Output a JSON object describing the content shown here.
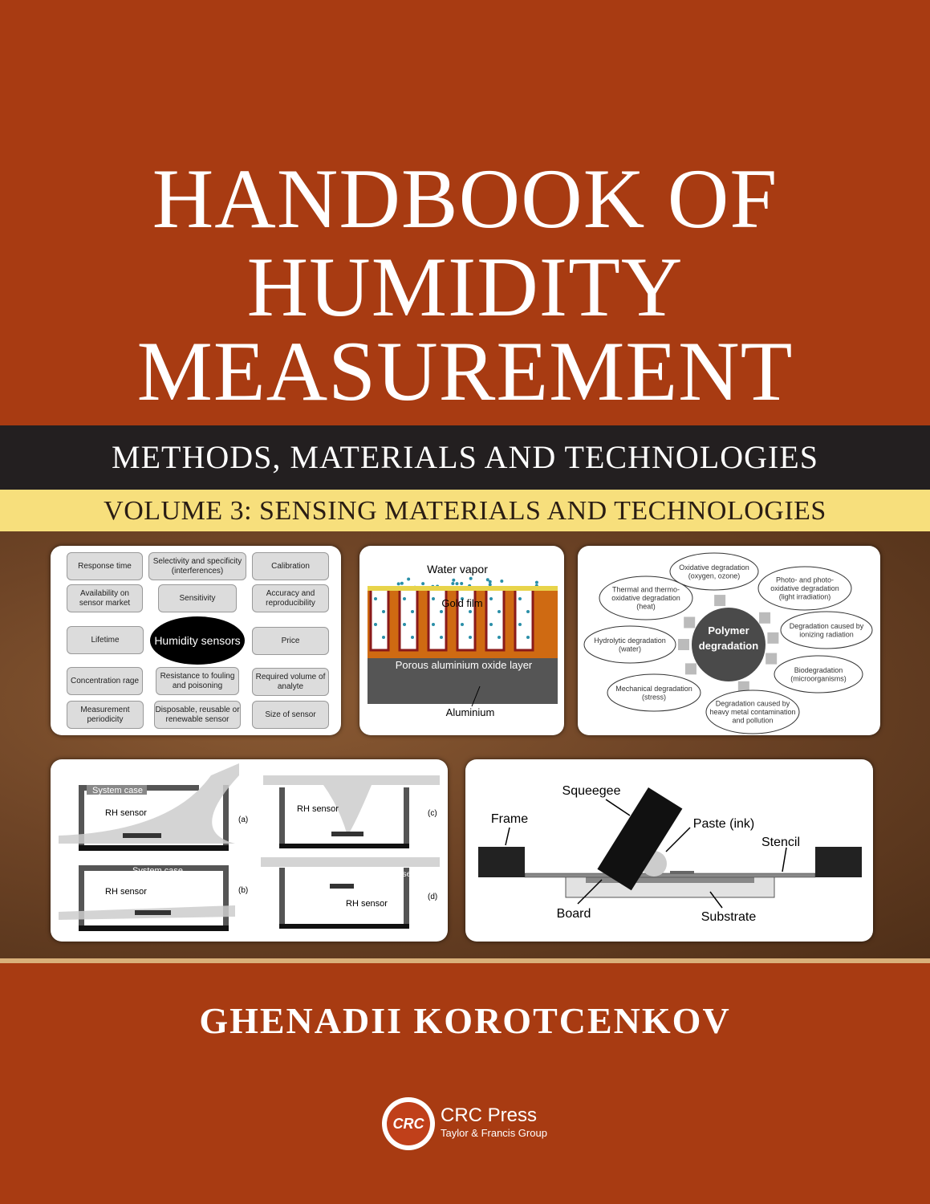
{
  "cover": {
    "title_lines": [
      "HANDBOOK OF",
      "HUMIDITY",
      "MEASUREMENT"
    ],
    "subtitle": "METHODS, MATERIALS AND TECHNOLOGIES",
    "volume": "VOLUME 3: SENSING MATERIALS AND TECHNOLOGIES",
    "author": "GHENADII KOROTCENKOV",
    "publisher": {
      "logo_text": "CRC",
      "name": "CRC Press",
      "group": "Taylor & Francis Group"
    },
    "colors": {
      "background": "#a83b12",
      "band_black": "#231f20",
      "band_yellow": "#f7df7c"
    }
  },
  "panel1": {
    "center": "Humidity sensors",
    "boxes": [
      "Response time",
      "Selectivity and specificity (interferences)",
      "Calibration",
      "Availability on sensor market",
      "Sensitivity",
      "Accuracy and reproducibility",
      "Lifetime",
      "Price",
      "Concentration rage",
      "Resistance to fouling and poisoning",
      "Required volume of analyte",
      "Measurement periodicity",
      "Disposable, reusable or renewable sensor",
      "Size of sensor"
    ]
  },
  "panel2": {
    "water_vapor": "Water vapor",
    "gold_film": "Gold film",
    "oxide_layer": "Porous aluminium oxide layer",
    "aluminium": "Aluminium"
  },
  "panel3": {
    "center": [
      "Polymer",
      "degradation"
    ],
    "causes": [
      [
        "Oxidative degradation",
        "(oxygen, ozone)"
      ],
      [
        "Photo- and photo-",
        "oxidative degradation",
        "(light irradiation)"
      ],
      [
        "Thermal and thermo-",
        "oxidative degradation",
        "(heat)"
      ],
      [
        "Degradation caused by",
        "ionizing radiation"
      ],
      [
        "Hydrolytic degradation",
        "(water)"
      ],
      [
        "Biodegradation",
        "(microorganisms)"
      ],
      [
        "Mechanical degradation",
        "(stress)"
      ],
      [
        "Degradation caused by",
        "heavy metal contamination",
        "and pollution"
      ]
    ]
  },
  "panel4": {
    "system_case": "System case",
    "rh_sensor": "RH sensor",
    "labels": [
      "(a)",
      "(b)",
      "(c)",
      "(d)"
    ]
  },
  "panel5": {
    "squeegee": "Squeegee",
    "frame": "Frame",
    "paste": "Paste (ink)",
    "stencil": "Stencil",
    "board": "Board",
    "substrate": "Substrate"
  }
}
